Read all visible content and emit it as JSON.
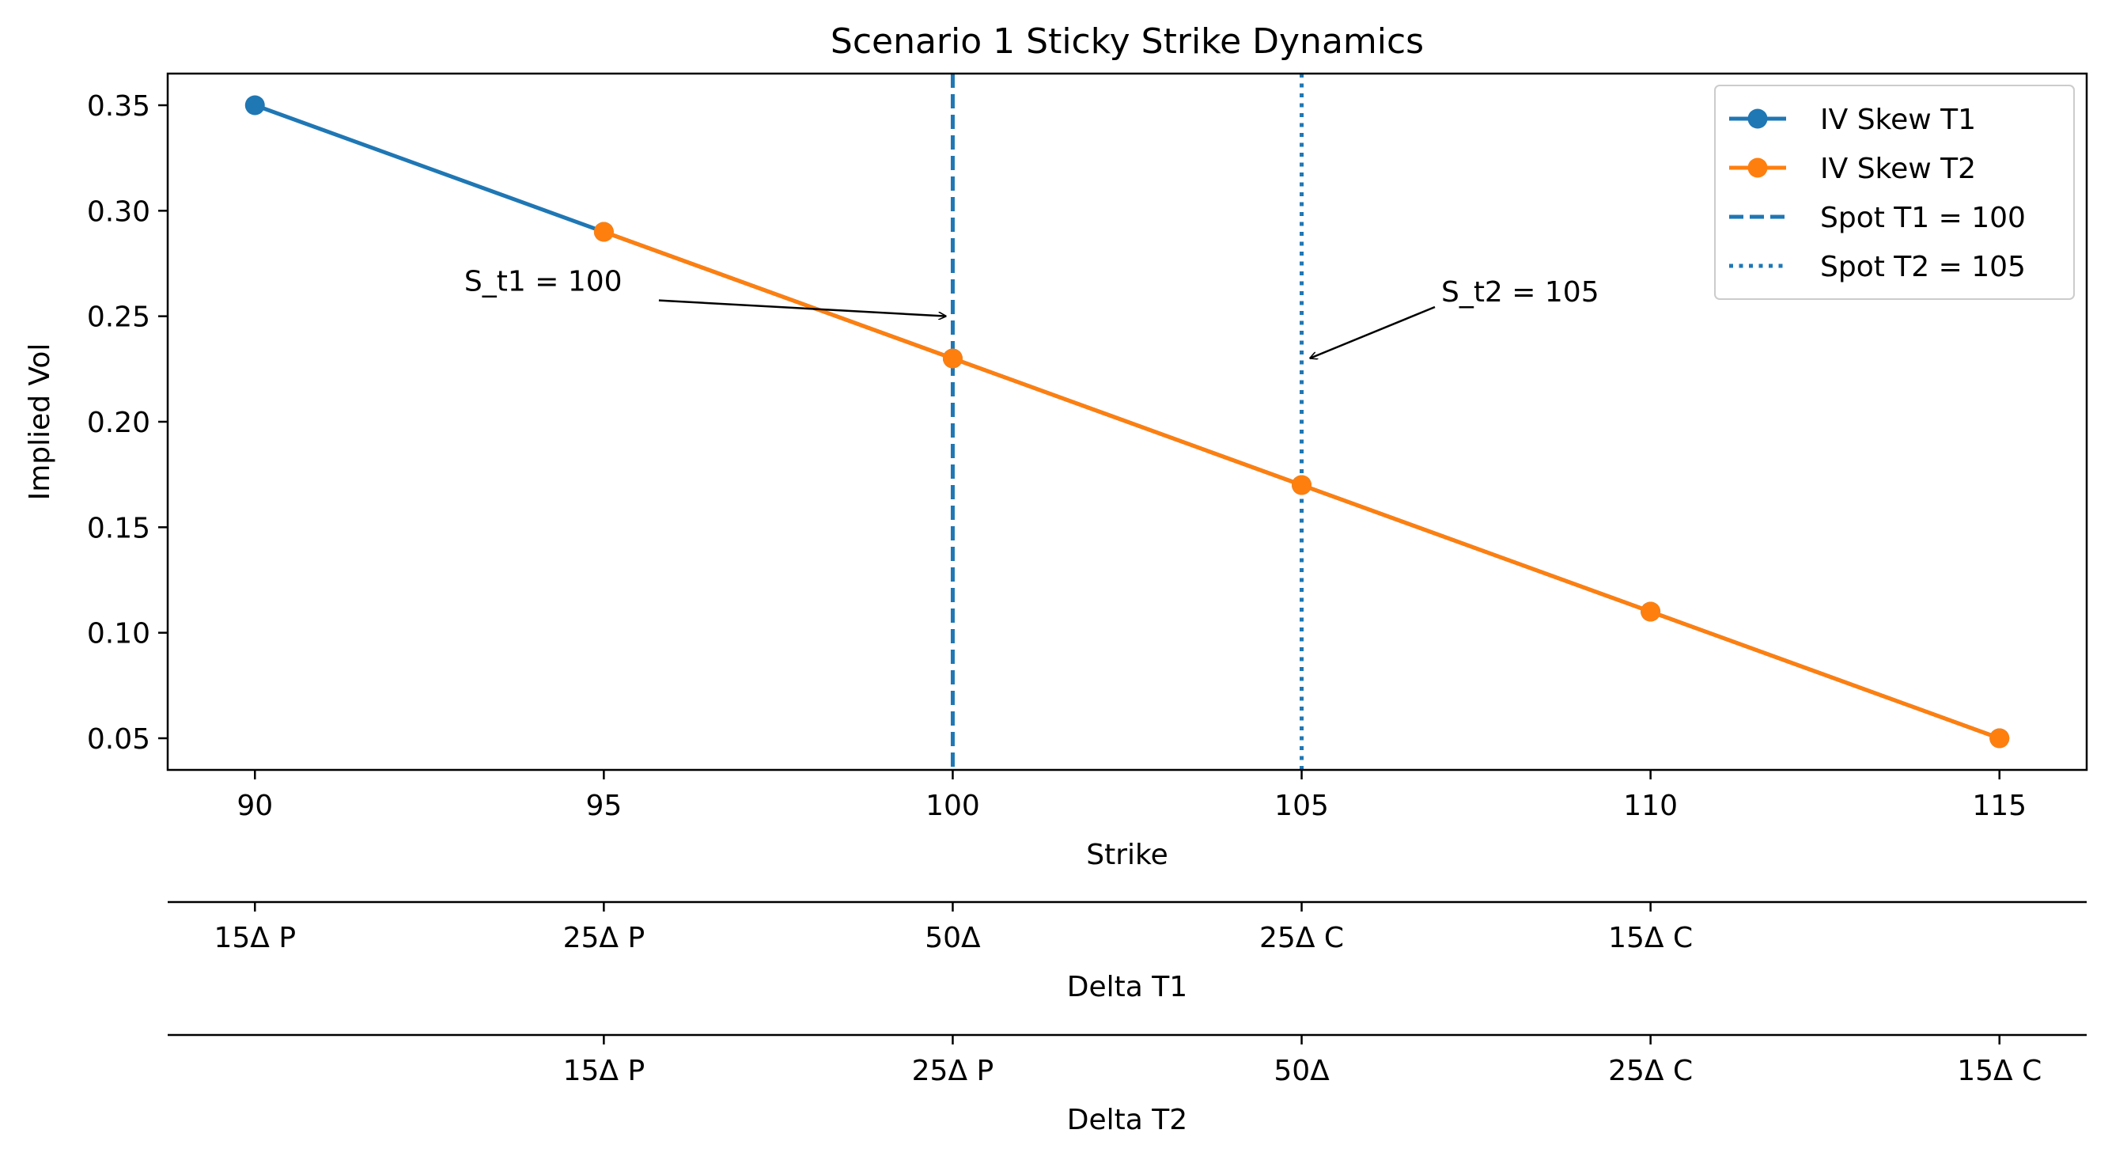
{
  "chart_data": {
    "type": "line",
    "title": "Scenario 1 Sticky Strike Dynamics",
    "xlabel": "Strike",
    "ylabel": "Implied Vol",
    "xlim": [
      88.75,
      116.25
    ],
    "ylim": [
      0.035,
      0.365
    ],
    "xticks": [
      90,
      95,
      100,
      105,
      110,
      115
    ],
    "yticks": [
      0.35,
      0.3,
      0.25,
      0.2,
      0.15,
      0.1,
      0.05
    ],
    "ytick_labels": [
      "0.35",
      "0.30",
      "0.25",
      "0.20",
      "0.15",
      "0.10",
      "0.05"
    ],
    "grid": false,
    "legend_position": "top-right",
    "series": [
      {
        "name": "IV Skew T1",
        "color": "#1f77b4",
        "style": "solid-marker",
        "x": [
          90,
          95,
          100,
          105,
          110,
          115
        ],
        "y": [
          0.35,
          0.29,
          0.23,
          0.17,
          0.11,
          0.05
        ]
      },
      {
        "name": "IV Skew T2",
        "color": "#ff7f0e",
        "style": "solid-marker",
        "x": [
          95,
          100,
          105,
          110,
          115
        ],
        "y": [
          0.29,
          0.23,
          0.17,
          0.11,
          0.05
        ]
      }
    ],
    "vlines": [
      {
        "name": "Spot T1 = 100",
        "x": 100,
        "color": "#1f77b4",
        "style": "dashed"
      },
      {
        "name": "Spot T2 = 105",
        "x": 105,
        "color": "#1f77b4",
        "style": "dotted"
      }
    ],
    "annotations": [
      {
        "text": "S_t1 = 100",
        "text_x": 93,
        "text_y": 0.262,
        "point_x": 100,
        "point_y": 0.25
      },
      {
        "text": "S_t2 = 105",
        "text_x": 107,
        "text_y": 0.257,
        "point_x": 105,
        "point_y": 0.23
      }
    ],
    "secondary_axes": [
      {
        "label": "Delta T1",
        "ticks": [
          90,
          95,
          100,
          105,
          110
        ],
        "tick_labels": [
          "15Δ P",
          "25Δ P",
          "50Δ",
          "25Δ C",
          "15Δ C"
        ]
      },
      {
        "label": "Delta T2",
        "ticks": [
          95,
          100,
          105,
          110,
          115
        ],
        "tick_labels": [
          "15Δ P",
          "25Δ P",
          "50Δ",
          "25Δ C",
          "15Δ C"
        ]
      }
    ]
  }
}
